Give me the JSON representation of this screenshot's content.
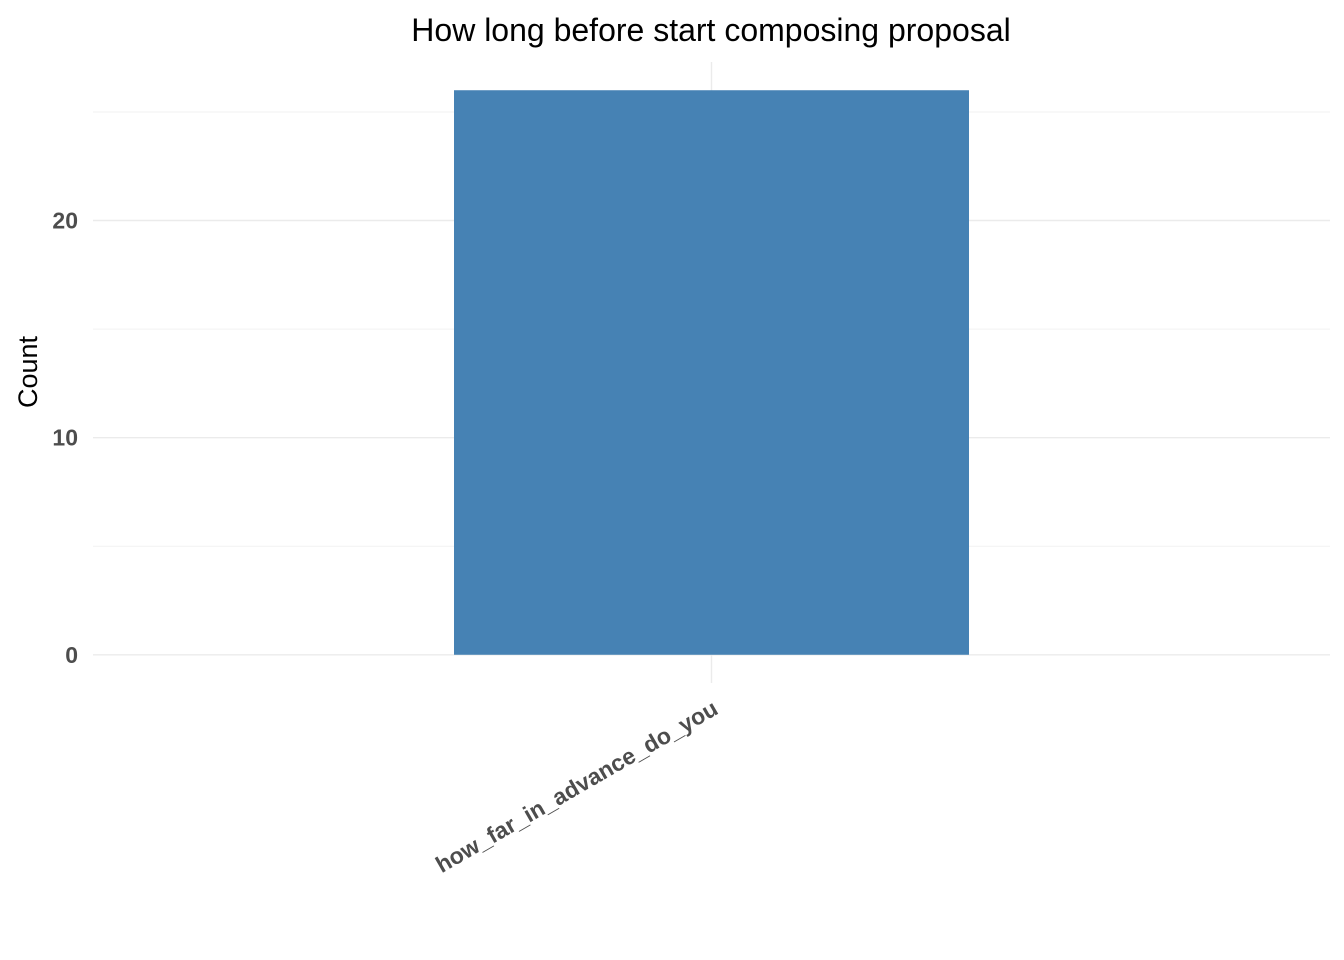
{
  "chart_data": {
    "type": "bar",
    "title": "How long before start composing proposal",
    "xlabel": "",
    "ylabel": "Count",
    "categories": [
      "how_far_in_advance_do_you"
    ],
    "values": [
      26
    ],
    "ylim": [
      -1.3,
      27.3
    ],
    "yticks": [
      0,
      10,
      20
    ],
    "grid": true,
    "legend": "none",
    "bar_color": "#4682b4"
  }
}
